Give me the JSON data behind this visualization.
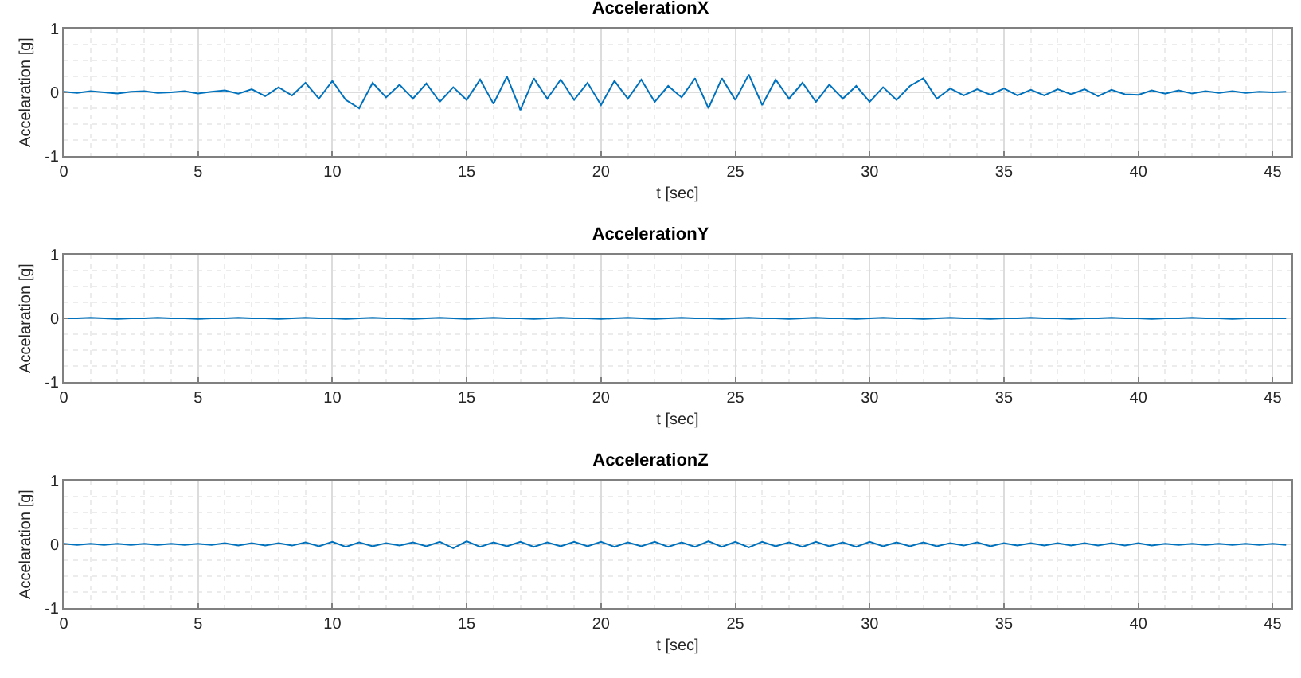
{
  "chart_data": [
    {
      "type": "line",
      "title": "AccelerationX",
      "xlabel": "t [sec]",
      "ylabel": "Accelaration [g]",
      "xlim": [
        0,
        45.7
      ],
      "xticks": [
        0,
        5,
        10,
        15,
        20,
        25,
        30,
        35,
        40,
        45
      ],
      "ylim": [
        -1,
        1
      ],
      "yticks": [
        -1,
        0,
        1
      ],
      "grid": true,
      "legend": false,
      "x": [
        0,
        0.5,
        1,
        1.5,
        2,
        2.5,
        3,
        3.5,
        4,
        4.5,
        5,
        5.5,
        6,
        6.5,
        7,
        7.5,
        8,
        8.5,
        9,
        9.5,
        10,
        10.5,
        11,
        11.5,
        12,
        12.5,
        13,
        13.5,
        14,
        14.5,
        15,
        15.5,
        16,
        16.5,
        17,
        17.5,
        18,
        18.5,
        19,
        19.5,
        20,
        20.5,
        21,
        21.5,
        22,
        22.5,
        23,
        23.5,
        24,
        24.5,
        25,
        25.5,
        26,
        26.5,
        27,
        27.5,
        28,
        28.5,
        29,
        29.5,
        30,
        30.5,
        31,
        31.5,
        32,
        32.5,
        33,
        33.5,
        34,
        34.5,
        35,
        35.5,
        36,
        36.5,
        37,
        37.5,
        38,
        38.5,
        39,
        39.5,
        40,
        40.5,
        41,
        41.5,
        42,
        42.5,
        43,
        43.5,
        44,
        44.5,
        45,
        45.5
      ],
      "series": [
        {
          "color": "#0072bd",
          "values": [
            0.01,
            -0.01,
            0.02,
            0,
            -0.02,
            0.01,
            0.02,
            -0.01,
            0,
            0.02,
            -0.02,
            0.01,
            0.03,
            -0.02,
            0.05,
            -0.06,
            0.08,
            -0.05,
            0.15,
            -0.1,
            0.18,
            -0.12,
            -0.25,
            0.15,
            -0.08,
            0.12,
            -0.1,
            0.14,
            -0.15,
            0.08,
            -0.12,
            0.2,
            -0.18,
            0.25,
            -0.28,
            0.22,
            -0.1,
            0.2,
            -0.12,
            0.15,
            -0.2,
            0.18,
            -0.1,
            0.2,
            -0.15,
            0.1,
            -0.08,
            0.22,
            -0.25,
            0.22,
            -0.12,
            0.28,
            -0.2,
            0.2,
            -0.1,
            0.15,
            -0.15,
            0.12,
            -0.1,
            0.1,
            -0.15,
            0.08,
            -0.12,
            0.1,
            0.22,
            -0.1,
            0.06,
            -0.05,
            0.05,
            -0.04,
            0.06,
            -0.05,
            0.04,
            -0.05,
            0.05,
            -0.03,
            0.05,
            -0.06,
            0.04,
            -0.03,
            -0.04,
            0.03,
            -0.02,
            0.03,
            -0.02,
            0.02,
            -0.01,
            0.02,
            -0.01,
            0.01,
            0,
            0.01
          ]
        }
      ]
    },
    {
      "type": "line",
      "title": "AccelerationY",
      "xlabel": "t [sec]",
      "ylabel": "Accelaration [g]",
      "xlim": [
        0,
        45.7
      ],
      "xticks": [
        0,
        5,
        10,
        15,
        20,
        25,
        30,
        35,
        40,
        45
      ],
      "ylim": [
        -1,
        1
      ],
      "yticks": [
        -1,
        0,
        1
      ],
      "grid": true,
      "legend": false,
      "x": [
        0,
        0.5,
        1,
        1.5,
        2,
        2.5,
        3,
        3.5,
        4,
        4.5,
        5,
        5.5,
        6,
        6.5,
        7,
        7.5,
        8,
        8.5,
        9,
        9.5,
        10,
        10.5,
        11,
        11.5,
        12,
        12.5,
        13,
        13.5,
        14,
        14.5,
        15,
        15.5,
        16,
        16.5,
        17,
        17.5,
        18,
        18.5,
        19,
        19.5,
        20,
        20.5,
        21,
        21.5,
        22,
        22.5,
        23,
        23.5,
        24,
        24.5,
        25,
        25.5,
        26,
        26.5,
        27,
        27.5,
        28,
        28.5,
        29,
        29.5,
        30,
        30.5,
        31,
        31.5,
        32,
        32.5,
        33,
        33.5,
        34,
        34.5,
        35,
        35.5,
        36,
        36.5,
        37,
        37.5,
        38,
        38.5,
        39,
        39.5,
        40,
        40.5,
        41,
        41.5,
        42,
        42.5,
        43,
        43.5,
        44,
        44.5,
        45,
        45.5
      ],
      "series": [
        {
          "color": "#0072bd",
          "values": [
            0,
            0,
            0.01,
            0,
            -0.01,
            0,
            0,
            0.01,
            0,
            0,
            -0.01,
            0,
            0,
            0.01,
            0,
            0,
            -0.01,
            0,
            0.01,
            0,
            0,
            -0.01,
            0,
            0.01,
            0,
            0,
            -0.01,
            0,
            0.01,
            0,
            -0.01,
            0,
            0.01,
            0,
            0,
            -0.01,
            0,
            0.01,
            0,
            0,
            -0.01,
            0,
            0.01,
            0,
            -0.01,
            0,
            0.01,
            0,
            0,
            -0.01,
            0,
            0.01,
            0,
            0,
            -0.01,
            0,
            0.01,
            0,
            0,
            -0.01,
            0,
            0.01,
            0,
            0,
            -0.01,
            0,
            0.01,
            0,
            0,
            -0.01,
            0,
            0,
            0.01,
            0,
            0,
            -0.01,
            0,
            0,
            0.01,
            0,
            0,
            -0.01,
            0,
            0,
            0.01,
            0,
            0,
            -0.01,
            0,
            0,
            0,
            0
          ]
        }
      ]
    },
    {
      "type": "line",
      "title": "AccelerationZ",
      "xlabel": "t [sec]",
      "ylabel": "Accelaration [g]",
      "xlim": [
        0,
        45.7
      ],
      "xticks": [
        0,
        5,
        10,
        15,
        20,
        25,
        30,
        35,
        40,
        45
      ],
      "ylim": [
        -1,
        1
      ],
      "yticks": [
        -1,
        0,
        1
      ],
      "grid": true,
      "legend": false,
      "x": [
        0,
        0.5,
        1,
        1.5,
        2,
        2.5,
        3,
        3.5,
        4,
        4.5,
        5,
        5.5,
        6,
        6.5,
        7,
        7.5,
        8,
        8.5,
        9,
        9.5,
        10,
        10.5,
        11,
        11.5,
        12,
        12.5,
        13,
        13.5,
        14,
        14.5,
        15,
        15.5,
        16,
        16.5,
        17,
        17.5,
        18,
        18.5,
        19,
        19.5,
        20,
        20.5,
        21,
        21.5,
        22,
        22.5,
        23,
        23.5,
        24,
        24.5,
        25,
        25.5,
        26,
        26.5,
        27,
        27.5,
        28,
        28.5,
        29,
        29.5,
        30,
        30.5,
        31,
        31.5,
        32,
        32.5,
        33,
        33.5,
        34,
        34.5,
        35,
        35.5,
        36,
        36.5,
        37,
        37.5,
        38,
        38.5,
        39,
        39.5,
        40,
        40.5,
        41,
        41.5,
        42,
        42.5,
        43,
        43.5,
        44,
        44.5,
        45,
        45.5
      ],
      "series": [
        {
          "color": "#0072bd",
          "values": [
            0.01,
            -0.01,
            0.01,
            -0.01,
            0.01,
            -0.01,
            0.01,
            -0.01,
            0.01,
            -0.01,
            0.01,
            -0.01,
            0.02,
            -0.02,
            0.02,
            -0.02,
            0.02,
            -0.02,
            0.03,
            -0.03,
            0.04,
            -0.04,
            0.03,
            -0.03,
            0.02,
            -0.02,
            0.03,
            -0.03,
            0.04,
            -0.06,
            0.05,
            -0.04,
            0.03,
            -0.03,
            0.04,
            -0.04,
            0.03,
            -0.03,
            0.04,
            -0.03,
            0.04,
            -0.04,
            0.03,
            -0.03,
            0.04,
            -0.04,
            0.03,
            -0.04,
            0.05,
            -0.04,
            0.04,
            -0.05,
            0.04,
            -0.03,
            0.03,
            -0.04,
            0.04,
            -0.03,
            0.03,
            -0.04,
            0.04,
            -0.03,
            0.03,
            -0.03,
            0.03,
            -0.03,
            0.02,
            -0.02,
            0.03,
            -0.03,
            0.02,
            -0.02,
            0.02,
            -0.02,
            0.02,
            -0.02,
            0.02,
            -0.02,
            0.02,
            -0.02,
            0.02,
            -0.02,
            0.01,
            -0.01,
            0.01,
            -0.01,
            0.01,
            -0.01,
            0.01,
            -0.01,
            0.01,
            -0.01
          ]
        }
      ]
    }
  ]
}
